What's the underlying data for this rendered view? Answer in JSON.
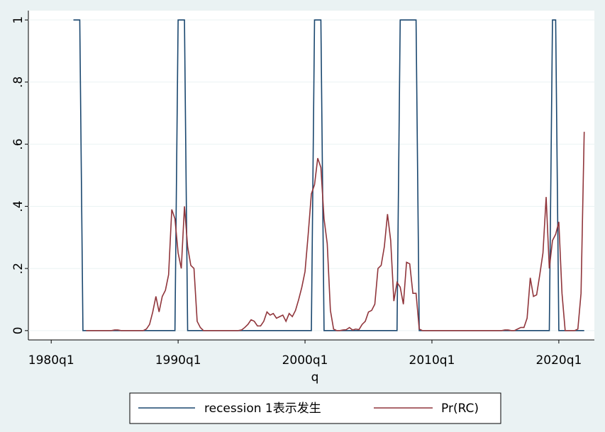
{
  "chart_data": {
    "type": "line",
    "x_label": "q",
    "x": [
      1981.75,
      1982,
      1982.25,
      1982.5,
      1982.75,
      1983,
      1983.25,
      1983.5,
      1983.75,
      1984,
      1984.25,
      1984.5,
      1984.75,
      1985,
      1985.25,
      1985.5,
      1985.75,
      1986,
      1986.25,
      1986.5,
      1986.75,
      1987,
      1987.25,
      1987.5,
      1987.75,
      1988,
      1988.25,
      1988.5,
      1988.75,
      1989,
      1989.25,
      1989.5,
      1989.75,
      1990,
      1990.25,
      1990.5,
      1990.75,
      1991,
      1991.25,
      1991.5,
      1991.75,
      1992,
      1992.25,
      1992.5,
      1992.75,
      1993,
      1993.25,
      1993.5,
      1993.75,
      1994,
      1994.25,
      1994.5,
      1994.75,
      1995,
      1995.25,
      1995.5,
      1995.75,
      1996,
      1996.25,
      1996.5,
      1996.75,
      1997,
      1997.25,
      1997.5,
      1997.75,
      1998,
      1998.25,
      1998.5,
      1998.75,
      1999,
      1999.25,
      1999.5,
      1999.75,
      2000,
      2000.25,
      2000.5,
      2000.75,
      2001,
      2001.25,
      2001.5,
      2001.75,
      2002,
      2002.25,
      2002.5,
      2002.75,
      2003,
      2003.25,
      2003.5,
      2003.75,
      2004,
      2004.25,
      2004.5,
      2004.75,
      2005,
      2005.25,
      2005.5,
      2005.75,
      2006,
      2006.25,
      2006.5,
      2006.75,
      2007,
      2007.25,
      2007.5,
      2007.75,
      2008,
      2008.25,
      2008.5,
      2008.75,
      2009,
      2009.25,
      2009.5,
      2009.75,
      2010,
      2010.25,
      2010.5,
      2010.75,
      2011,
      2011.25,
      2011.5,
      2011.75,
      2012,
      2012.25,
      2012.5,
      2012.75,
      2013,
      2013.25,
      2013.5,
      2013.75,
      2014,
      2014.25,
      2014.5,
      2014.75,
      2015,
      2015.25,
      2015.5,
      2015.75,
      2016,
      2016.25,
      2016.5,
      2016.75,
      2017,
      2017.25,
      2017.5,
      2017.75,
      2018,
      2018.25,
      2018.5,
      2018.75,
      2019,
      2019.25,
      2019.5,
      2019.75,
      2020,
      2020.25,
      2020.5,
      2020.75,
      2021,
      2021.25,
      2021.5,
      2021.75,
      2022
    ],
    "series": [
      {
        "name": "recession 1表示发生",
        "color": "#1a476f",
        "values": [
          1,
          1,
          1,
          0,
          0,
          0,
          0,
          0,
          0,
          0,
          0,
          0,
          0,
          0,
          0,
          0,
          0,
          0,
          0,
          0,
          0,
          0,
          0,
          0,
          0,
          0,
          0,
          0,
          0,
          0,
          0,
          0,
          0,
          1,
          1,
          1,
          0,
          0,
          0,
          0,
          0,
          0,
          0,
          0,
          0,
          0,
          0,
          0,
          0,
          0,
          0,
          0,
          0,
          0,
          0,
          0,
          0,
          0,
          0,
          0,
          0,
          0,
          0,
          0,
          0,
          0,
          0,
          0,
          0,
          0,
          0,
          0,
          0,
          0,
          0,
          0,
          1,
          1,
          1,
          0,
          0,
          0,
          0,
          0,
          0,
          0,
          0,
          0,
          0,
          0,
          0,
          0,
          0,
          0,
          0,
          0,
          0,
          0,
          0,
          0,
          0,
          0,
          0,
          1,
          1,
          1,
          1,
          1,
          1,
          0,
          0,
          0,
          0,
          0,
          0,
          0,
          0,
          0,
          0,
          0,
          0,
          0,
          0,
          0,
          0,
          0,
          0,
          0,
          0,
          0,
          0,
          0,
          0,
          0,
          0,
          0,
          0,
          0,
          0,
          0,
          0,
          0,
          0,
          0,
          0,
          0,
          0,
          0,
          0,
          0,
          0,
          1,
          1,
          0,
          0,
          0,
          0,
          0,
          0,
          0,
          0,
          0
        ]
      },
      {
        "name": "Pr(RC)",
        "color": "#90353b",
        "values": [
          null,
          null,
          null,
          null,
          0,
          0,
          0,
          0,
          0,
          0,
          0,
          0,
          0,
          0.002,
          0.002,
          0,
          0,
          0,
          0,
          0,
          0,
          0,
          0,
          0.005,
          0.02,
          0.06,
          0.11,
          0.06,
          0.11,
          0.13,
          0.18,
          0.39,
          0.36,
          0.25,
          0.2,
          0.4,
          0.27,
          0.21,
          0.2,
          0.03,
          0.01,
          0,
          0,
          0,
          0,
          0,
          0,
          0,
          0,
          0,
          0,
          0,
          0,
          0.002,
          0.01,
          0.02,
          0.035,
          0.03,
          0.015,
          0.015,
          0.03,
          0.06,
          0.05,
          0.055,
          0.04,
          0.045,
          0.05,
          0.03,
          0.055,
          0.045,
          0.065,
          0.1,
          0.14,
          0.19,
          0.31,
          0.44,
          0.47,
          0.555,
          0.525,
          0.36,
          0.28,
          0.065,
          0.005,
          0,
          0,
          0.002,
          0.003,
          0.01,
          0.002,
          0.005,
          0.003,
          0.02,
          0.03,
          0.06,
          0.065,
          0.085,
          0.2,
          0.21,
          0.27,
          0.375,
          0.29,
          0.095,
          0.155,
          0.14,
          0.085,
          0.22,
          0.215,
          0.12,
          0.12,
          0.005,
          0,
          0,
          0,
          0,
          0,
          0,
          0,
          0,
          0,
          0,
          0,
          0,
          0,
          0,
          0,
          0,
          0,
          0,
          0,
          0,
          0,
          0,
          0,
          0,
          0,
          0,
          0.002,
          0.002,
          0,
          0,
          0.005,
          0.01,
          0.01,
          0.04,
          0.17,
          0.11,
          0.115,
          0.18,
          0.25,
          0.43,
          0.2,
          0.29,
          0.31,
          0.35,
          0.12,
          0,
          0,
          0,
          0,
          0.005,
          0.12,
          0.64
        ]
      }
    ],
    "xlim": [
      1978.2,
      2022.8
    ],
    "xticks": [
      {
        "value": 1980,
        "label": "1980q1"
      },
      {
        "value": 1990,
        "label": "1990q1"
      },
      {
        "value": 2000,
        "label": "2000q1"
      },
      {
        "value": 2010,
        "label": "2010q1"
      },
      {
        "value": 2020,
        "label": "2020q1"
      }
    ],
    "ylim": [
      -0.03,
      1.03
    ],
    "yticks": [
      0,
      {
        "value": 0.2,
        "label": ".2"
      },
      {
        "value": 0.4,
        "label": ".4"
      },
      {
        "value": 0.6,
        "label": ".6"
      },
      {
        "value": 0.8,
        "label": ".8"
      },
      1
    ],
    "grid": true,
    "legend": "bottom"
  }
}
